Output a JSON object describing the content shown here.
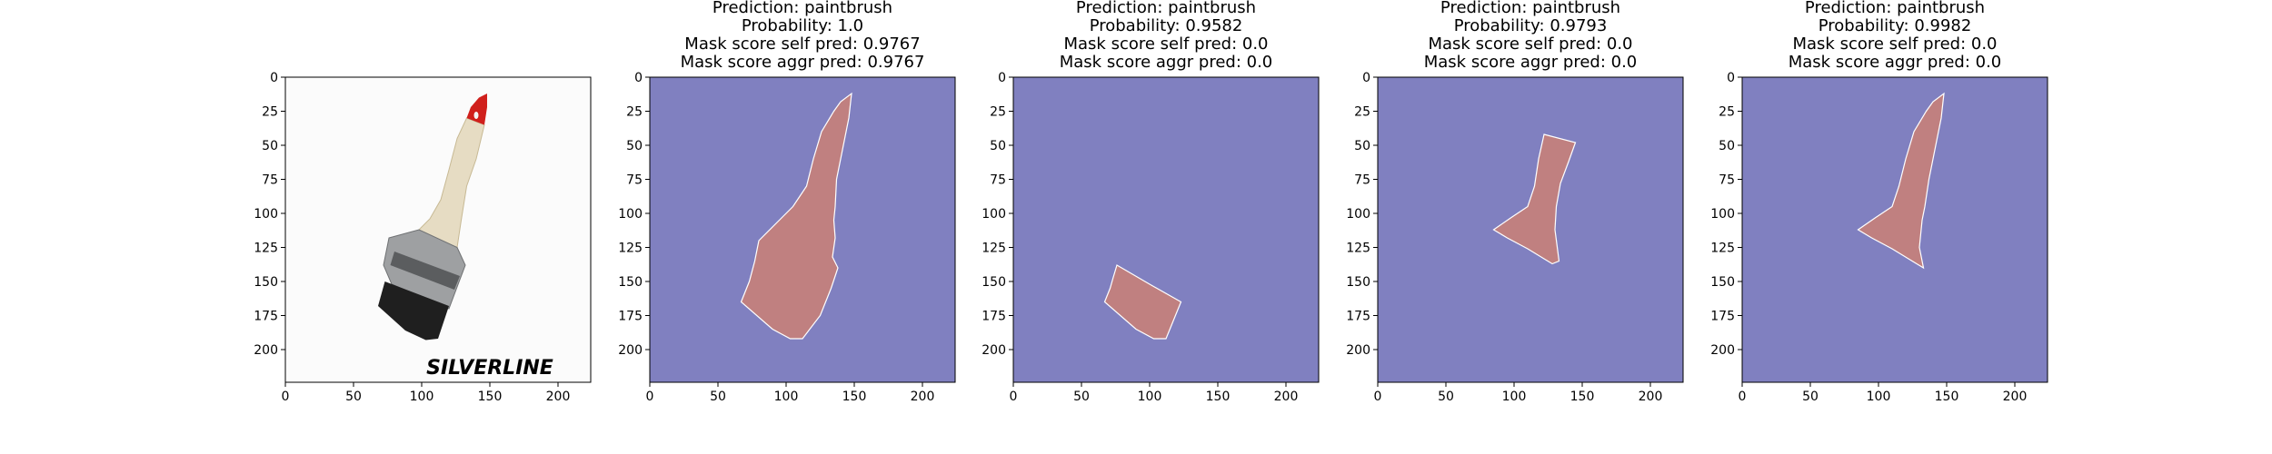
{
  "figure": {
    "background": "#ffffff"
  },
  "chart_data": [
    {
      "type": "image",
      "title_lines": [],
      "content": "paintbrush photo",
      "watermark": "SILVERLINE",
      "xlim": [
        0,
        224
      ],
      "ylim": [
        224,
        0
      ],
      "xticks": [
        0,
        50,
        100,
        150,
        200
      ],
      "yticks": [
        0,
        25,
        50,
        75,
        100,
        125,
        150,
        175,
        200
      ],
      "colors": {
        "handle": "#e6dcc3",
        "tip": "#d0201c",
        "ferrule": "#9ea0a2",
        "bristles": "#1f1f1f",
        "background": "#fbfbfb"
      }
    },
    {
      "type": "heatmap",
      "title_lines": [
        "Prediction: paintbrush",
        "Probability: 1.0",
        "Mask score self pred: 0.9767",
        "Mask score aggr pred: 0.9767"
      ],
      "prediction": "paintbrush",
      "probability": 1.0,
      "mask_score_self_pred": 0.9767,
      "mask_score_aggr_pred": 0.9767,
      "mask_region": "full brush",
      "xlim": [
        0,
        224
      ],
      "ylim": [
        224,
        0
      ],
      "xticks": [
        0,
        50,
        100,
        150,
        200
      ],
      "yticks": [
        0,
        25,
        50,
        75,
        100,
        125,
        150,
        175,
        200
      ],
      "colors": {
        "background": "#8080c0",
        "mask": "#c08080"
      }
    },
    {
      "type": "heatmap",
      "title_lines": [
        "Prediction: paintbrush",
        "Probability: 0.9582",
        "Mask score self pred: 0.0",
        "Mask score aggr pred: 0.0"
      ],
      "prediction": "paintbrush",
      "probability": 0.9582,
      "mask_score_self_pred": 0.0,
      "mask_score_aggr_pred": 0.0,
      "mask_region": "bristles only",
      "xlim": [
        0,
        224
      ],
      "ylim": [
        224,
        0
      ],
      "xticks": [
        0,
        50,
        100,
        150,
        200
      ],
      "yticks": [
        0,
        25,
        50,
        75,
        100,
        125,
        150,
        175,
        200
      ],
      "colors": {
        "background": "#8080c0",
        "mask": "#c08080"
      }
    },
    {
      "type": "heatmap",
      "title_lines": [
        "Prediction: paintbrush",
        "Probability: 0.9793",
        "Mask score self pred: 0.0",
        "Mask score aggr pred: 0.0"
      ],
      "prediction": "paintbrush",
      "probability": 0.9793,
      "mask_score_self_pred": 0.0,
      "mask_score_aggr_pred": 0.0,
      "mask_region": "handle middle",
      "xlim": [
        0,
        224
      ],
      "ylim": [
        224,
        0
      ],
      "xticks": [
        0,
        50,
        100,
        150,
        200
      ],
      "yticks": [
        0,
        25,
        50,
        75,
        100,
        125,
        150,
        175,
        200
      ],
      "colors": {
        "background": "#8080c0",
        "mask": "#c08080"
      }
    },
    {
      "type": "heatmap",
      "title_lines": [
        "Prediction: paintbrush",
        "Probability: 0.9982",
        "Mask score self pred: 0.0",
        "Mask score aggr pred: 0.0"
      ],
      "prediction": "paintbrush",
      "probability": 0.9982,
      "mask_score_self_pred": 0.0,
      "mask_score_aggr_pred": 0.0,
      "mask_region": "handle",
      "xlim": [
        0,
        224
      ],
      "ylim": [
        224,
        0
      ],
      "xticks": [
        0,
        50,
        100,
        150,
        200
      ],
      "yticks": [
        0,
        25,
        50,
        75,
        100,
        125,
        150,
        175,
        200
      ],
      "colors": {
        "background": "#8080c0",
        "mask": "#c08080"
      }
    }
  ]
}
